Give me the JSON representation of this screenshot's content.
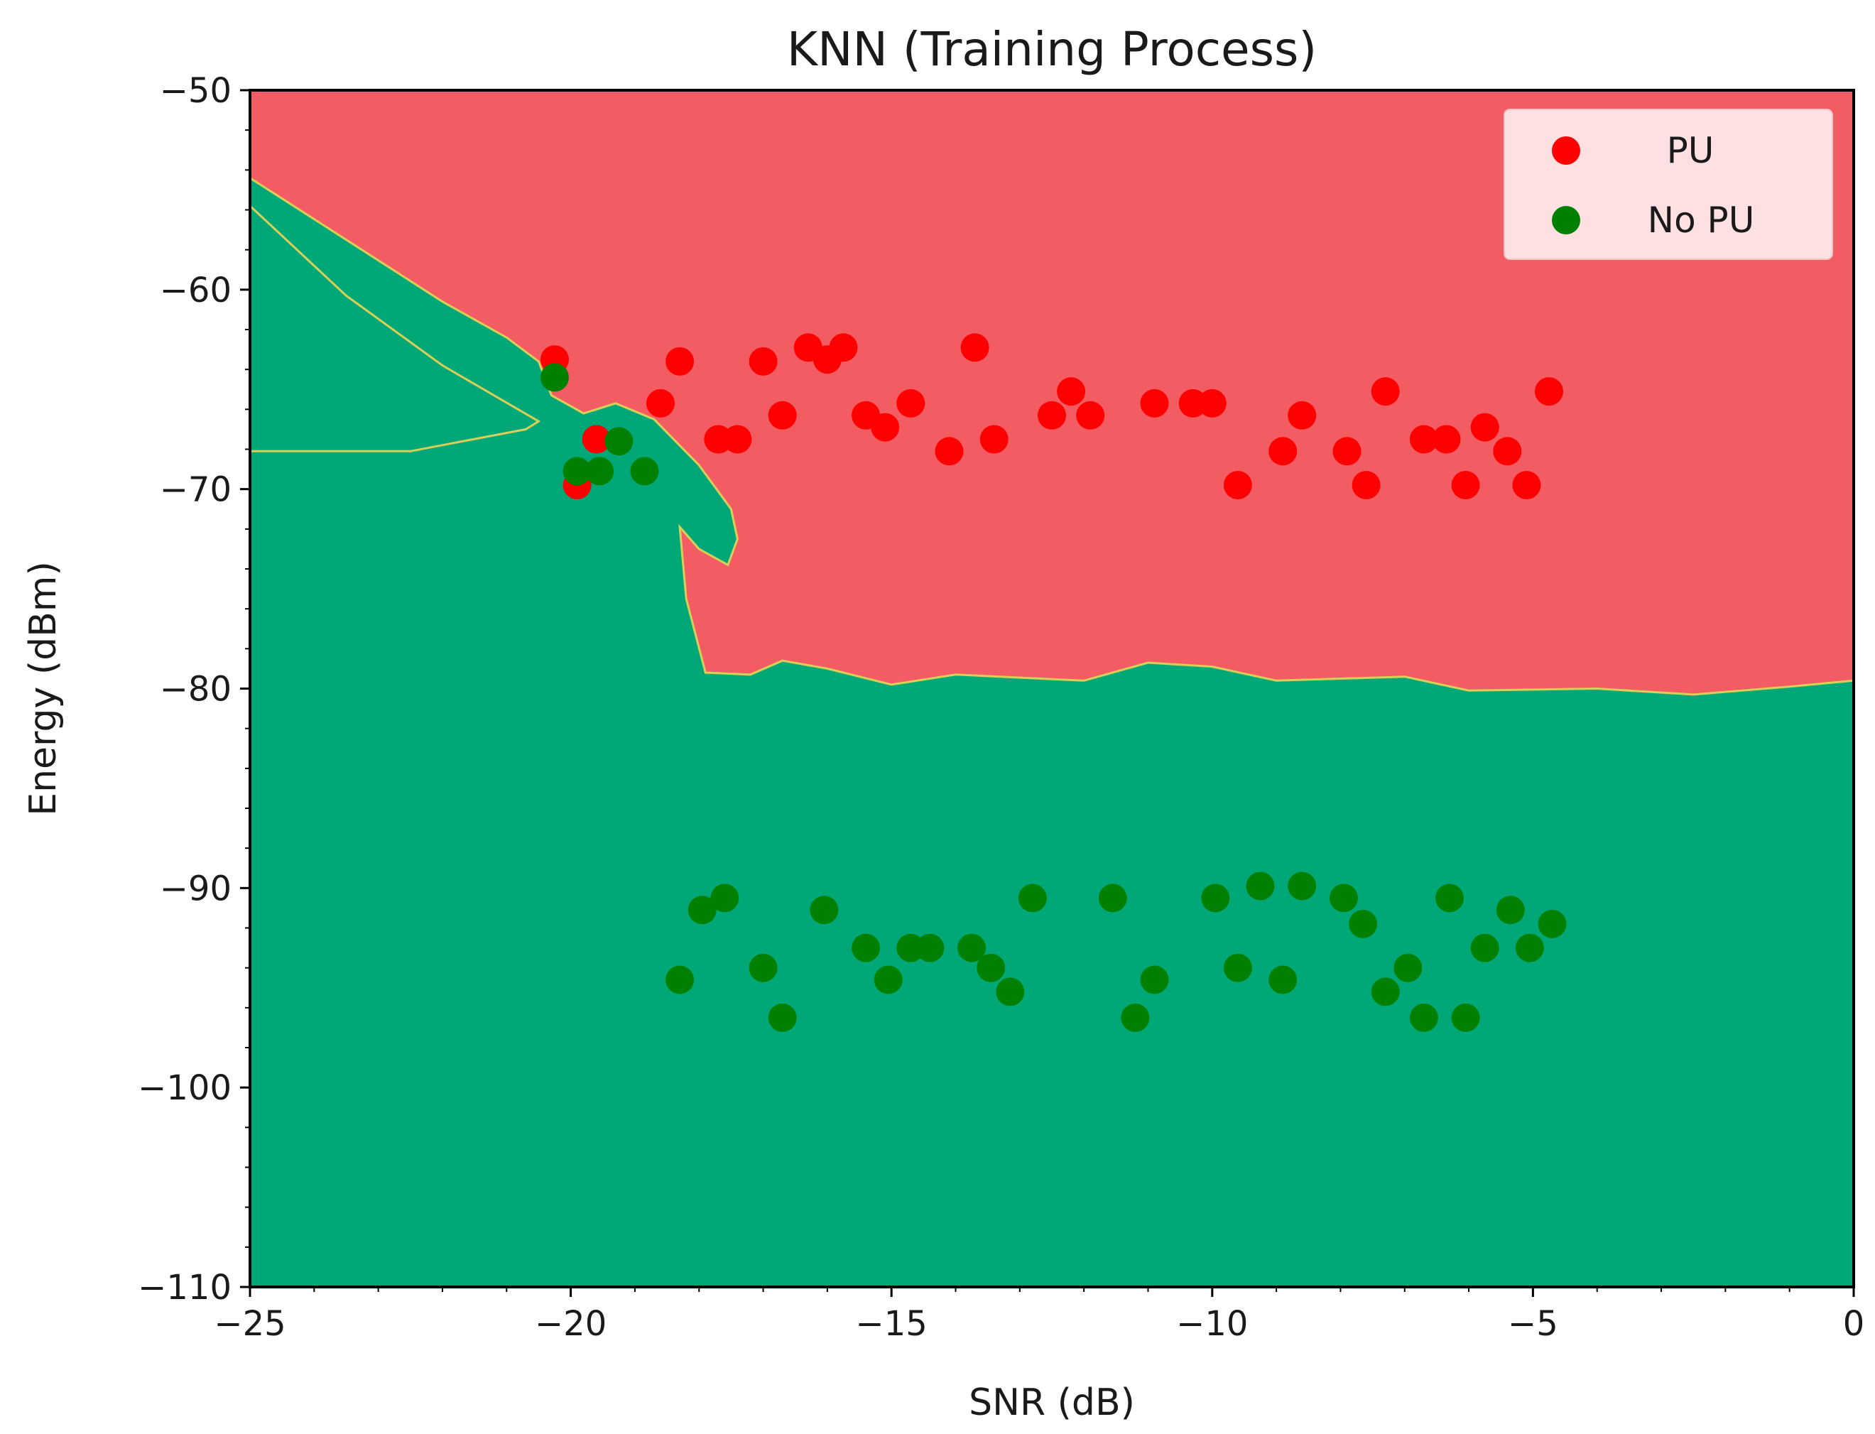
{
  "chart_data": {
    "type": "scatter",
    "title": "KNN (Training Process)",
    "xlabel": "SNR (dB)",
    "ylabel": "Energy (dBm)",
    "xlim": [
      -25,
      0
    ],
    "ylim": [
      -110,
      -50
    ],
    "xticks": [
      -25,
      -20,
      -15,
      -10,
      -5,
      0
    ],
    "yticks": [
      -50,
      -60,
      -70,
      -80,
      -90,
      -100,
      -110
    ],
    "xtick_labels": [
      "−25",
      "−20",
      "−15",
      "−10",
      "−5",
      "0"
    ],
    "ytick_labels": [
      "−50",
      "−60",
      "−70",
      "−80",
      "−90",
      "−100",
      "−110"
    ],
    "grid": false,
    "legend_position": "top-right",
    "background_regions": [
      {
        "class": "PU",
        "color": "#f25c62"
      },
      {
        "class": "No PU",
        "color": "#00a877"
      }
    ],
    "decision_boundary": [
      [
        -25,
        -55.8
      ],
      [
        -23.5,
        -60.3
      ],
      [
        -22,
        -63.8
      ],
      [
        -20.5,
        -66.6
      ],
      [
        -20.7,
        -67.0
      ],
      [
        -22.5,
        -68.1
      ],
      [
        -25,
        -68.1
      ]
    ],
    "no_pu_region_outline": [
      [
        -25,
        -54.4
      ],
      [
        -23.5,
        -57.5
      ],
      [
        -22,
        -60.6
      ],
      [
        -21,
        -62.4
      ],
      [
        -20.5,
        -63.6
      ],
      [
        -20.3,
        -65.3
      ],
      [
        -19.8,
        -66.2
      ],
      [
        -19.3,
        -65.7
      ],
      [
        -18.7,
        -66.5
      ],
      [
        -18.0,
        -68.8
      ],
      [
        -17.5,
        -71.0
      ],
      [
        -17.4,
        -72.5
      ],
      [
        -17.55,
        -73.8
      ],
      [
        -18.0,
        -73.0
      ],
      [
        -18.3,
        -71.9
      ],
      [
        -18.2,
        -75.5
      ],
      [
        -17.9,
        -79.2
      ],
      [
        -17.2,
        -79.3
      ],
      [
        -16.7,
        -78.6
      ],
      [
        -16.0,
        -79.0
      ],
      [
        -15.0,
        -79.8
      ],
      [
        -14.0,
        -79.3
      ],
      [
        -12.0,
        -79.6
      ],
      [
        -11.0,
        -78.7
      ],
      [
        -10.0,
        -78.9
      ],
      [
        -9.0,
        -79.6
      ],
      [
        -7.0,
        -79.4
      ],
      [
        -6.0,
        -80.1
      ],
      [
        -4.0,
        -80.0
      ],
      [
        -2.5,
        -80.3
      ],
      [
        -1.0,
        -79.9
      ],
      [
        0,
        -79.6
      ],
      [
        0,
        -110
      ],
      [
        -25,
        -110
      ]
    ],
    "series": [
      {
        "name": "PU",
        "color": "#ff0000",
        "points": [
          [
            -20.25,
            -63.5
          ],
          [
            -19.9,
            -69.8
          ],
          [
            -19.6,
            -67.5
          ],
          [
            -18.6,
            -65.7
          ],
          [
            -18.3,
            -63.6
          ],
          [
            -17.7,
            -67.5
          ],
          [
            -17.4,
            -67.5
          ],
          [
            -17.0,
            -63.6
          ],
          [
            -16.7,
            -66.3
          ],
          [
            -16.3,
            -62.9
          ],
          [
            -16.0,
            -63.5
          ],
          [
            -15.75,
            -62.9
          ],
          [
            -15.4,
            -66.3
          ],
          [
            -15.1,
            -66.9
          ],
          [
            -14.7,
            -65.7
          ],
          [
            -14.1,
            -68.1
          ],
          [
            -13.7,
            -62.9
          ],
          [
            -13.4,
            -67.5
          ],
          [
            -12.5,
            -66.3
          ],
          [
            -12.2,
            -65.1
          ],
          [
            -11.9,
            -66.3
          ],
          [
            -10.9,
            -65.7
          ],
          [
            -10.3,
            -65.7
          ],
          [
            -10.0,
            -65.7
          ],
          [
            -9.6,
            -69.8
          ],
          [
            -8.9,
            -68.1
          ],
          [
            -8.6,
            -66.3
          ],
          [
            -7.9,
            -68.1
          ],
          [
            -7.6,
            -69.8
          ],
          [
            -7.3,
            -65.1
          ],
          [
            -6.7,
            -67.5
          ],
          [
            -6.35,
            -67.5
          ],
          [
            -6.05,
            -69.8
          ],
          [
            -5.75,
            -66.9
          ],
          [
            -5.4,
            -68.1
          ],
          [
            -5.1,
            -69.8
          ],
          [
            -4.75,
            -65.1
          ]
        ]
      },
      {
        "name": "No PU",
        "color": "#008000",
        "points": [
          [
            -20.25,
            -64.4
          ],
          [
            -19.9,
            -69.1
          ],
          [
            -19.55,
            -69.1
          ],
          [
            -19.25,
            -67.6
          ],
          [
            -18.85,
            -69.1
          ],
          [
            -18.3,
            -94.6
          ],
          [
            -17.95,
            -91.1
          ],
          [
            -17.6,
            -90.5
          ],
          [
            -17.0,
            -94.0
          ],
          [
            -16.7,
            -96.5
          ],
          [
            -16.05,
            -91.1
          ],
          [
            -15.4,
            -93.0
          ],
          [
            -15.05,
            -94.6
          ],
          [
            -14.7,
            -93.0
          ],
          [
            -14.4,
            -93.0
          ],
          [
            -13.75,
            -93.0
          ],
          [
            -13.45,
            -94.0
          ],
          [
            -13.15,
            -95.2
          ],
          [
            -12.8,
            -90.5
          ],
          [
            -11.55,
            -90.5
          ],
          [
            -11.2,
            -96.5
          ],
          [
            -10.9,
            -94.6
          ],
          [
            -9.95,
            -90.5
          ],
          [
            -9.6,
            -94.0
          ],
          [
            -9.25,
            -89.9
          ],
          [
            -8.9,
            -94.6
          ],
          [
            -8.6,
            -89.9
          ],
          [
            -7.95,
            -90.5
          ],
          [
            -7.65,
            -91.8
          ],
          [
            -7.3,
            -95.2
          ],
          [
            -6.95,
            -94.0
          ],
          [
            -6.7,
            -96.5
          ],
          [
            -6.3,
            -90.5
          ],
          [
            -6.05,
            -96.5
          ],
          [
            -5.75,
            -93.0
          ],
          [
            -5.35,
            -91.1
          ],
          [
            -5.05,
            -93.0
          ],
          [
            -4.7,
            -91.8
          ]
        ]
      }
    ]
  }
}
